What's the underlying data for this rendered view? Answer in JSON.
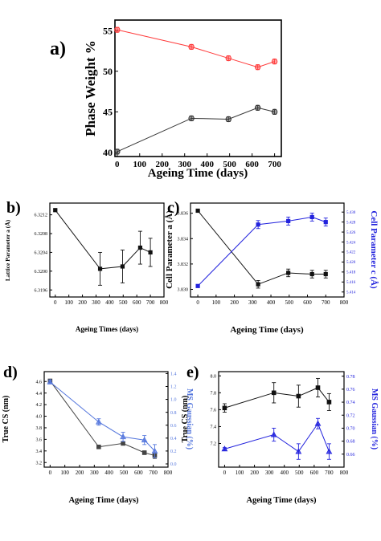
{
  "chart_data": [
    {
      "panel": "a)",
      "type": "scatter",
      "xlabel": "Ageing Time (days)",
      "ylabel": "Phase Weight %",
      "xlim": [
        -10,
        730
      ],
      "ylim": [
        39.5,
        56.3
      ],
      "xticks": [
        "0",
        "100",
        "200",
        "300",
        "400",
        "500",
        "600",
        "700"
      ],
      "yticks": [
        "40",
        "45",
        "50",
        "55"
      ],
      "series": [
        {
          "color": "#ff3b3b",
          "marker": "circle",
          "x": [
            0,
            330,
            495,
            625,
            700
          ],
          "y": [
            55.1,
            53.0,
            51.6,
            50.5,
            51.2
          ],
          "err": [
            0.3,
            0.3,
            0.3,
            0.3,
            0.3
          ]
        },
        {
          "color": "#333333",
          "marker": "circle",
          "x": [
            0,
            330,
            495,
            625,
            700
          ],
          "y": [
            40.1,
            44.2,
            44.1,
            45.5,
            45.0
          ],
          "err": [
            0.3,
            0.3,
            0.3,
            0.3,
            0.3
          ]
        }
      ]
    },
    {
      "panel": "b)",
      "type": "scatter",
      "xlabel": "Ageing Times (days)",
      "ylabel": "Lattice Parameter a (Å)",
      "xlim": [
        -40,
        800
      ],
      "ylim": [
        6.31945,
        6.32145
      ],
      "xticks": [
        "0",
        "100",
        "200",
        "300",
        "400",
        "500",
        "600",
        "700",
        "800"
      ],
      "yticks": [
        "6.3196",
        "6.3200",
        "6.3204",
        "6.3208",
        "6.3212"
      ],
      "series": [
        {
          "color": "#111111",
          "marker": "square",
          "x": [
            0,
            330,
            495,
            625,
            700
          ],
          "y": [
            6.3213,
            6.32005,
            6.3201,
            6.3205,
            6.3204
          ],
          "err": [
            2e-05,
            0.00035,
            0.00035,
            0.00035,
            0.0003
          ]
        }
      ]
    },
    {
      "panel": "c)",
      "type": "scatter",
      "xlabel": "Ageing Time (days)",
      "ylabel": "Cell Parameter a (Å)",
      "ylabel_right": "Cell Parameter c (Å)",
      "xlim": [
        -40,
        800
      ],
      "ylim": [
        3.8294,
        3.8368
      ],
      "ylim_right": [
        5.413,
        5.4318
      ],
      "xticks": [
        "0",
        "100",
        "200",
        "300",
        "400",
        "500",
        "600",
        "700",
        "800"
      ],
      "yticks": [
        "3.830",
        "3.832",
        "3.834",
        "3.836"
      ],
      "yticks_right": [
        "5.414",
        "5.416",
        "5.418",
        "5.420",
        "5.422",
        "5.424",
        "5.426",
        "5.428",
        "5.430"
      ],
      "series": [
        {
          "axis": "left",
          "color": "#111111",
          "marker": "square",
          "x": [
            0,
            330,
            495,
            625,
            700
          ],
          "y": [
            3.8362,
            3.8304,
            3.8313,
            3.8312,
            3.8312
          ],
          "err": [
            5e-05,
            0.0003,
            0.0003,
            0.0003,
            0.0003
          ]
        },
        {
          "axis": "right",
          "color": "#2222dd",
          "marker": "square",
          "x": [
            0,
            330,
            495,
            625,
            700
          ],
          "y": [
            5.4152,
            5.4275,
            5.4282,
            5.429,
            5.428
          ],
          "err": [
            0.0002,
            0.0008,
            0.0008,
            0.0008,
            0.0008
          ]
        }
      ]
    },
    {
      "panel": "d)",
      "type": "scatter",
      "xlabel": "Ageing Time (days)",
      "ylabel": "True CS (nm)",
      "ylabel_right": "MS Gaussian (%)",
      "xlim": [
        -40,
        800
      ],
      "ylim": [
        3.12,
        4.77
      ],
      "ylim_right": [
        -0.05,
        1.43
      ],
      "xticks": [
        "0",
        "100",
        "200",
        "300",
        "400",
        "500",
        "600",
        "700",
        "800"
      ],
      "yticks": [
        "3.2",
        "3.4",
        "3.6",
        "3.8",
        "4.0",
        "4.2",
        "4.4",
        "4.6"
      ],
      "yticks_right": [
        "0.0",
        "0.2",
        "0.4",
        "0.6",
        "0.8",
        "1.0",
        "1.2",
        "1.4"
      ],
      "series": [
        {
          "axis": "left",
          "color": "#444444",
          "marker": "square",
          "x": [
            0,
            330,
            495,
            640,
            710
          ],
          "y": [
            4.61,
            3.47,
            3.53,
            3.37,
            3.32
          ],
          "err": [
            0.03,
            0.02,
            0.02,
            0.03,
            0.05
          ]
        },
        {
          "axis": "right",
          "color": "#5577dd",
          "marker": "triangle",
          "x": [
            0,
            330,
            495,
            640,
            710
          ],
          "y": [
            1.27,
            0.65,
            0.42,
            0.37,
            0.2
          ],
          "err": [
            0.03,
            0.05,
            0.07,
            0.07,
            0.1
          ]
        }
      ]
    },
    {
      "panel": "e)",
      "type": "scatter",
      "xlabel": "Ageing Time (days)",
      "ylabel": "True CS (nm)",
      "ylabel_right": "MS Gaussian (%)",
      "xlim": [
        -40,
        800
      ],
      "ylim": [
        6.92,
        8.05
      ],
      "ylim_right": [
        0.64,
        0.787
      ],
      "xticks": [
        "0",
        "100",
        "200",
        "300",
        "400",
        "500",
        "600",
        "700",
        "800"
      ],
      "yticks": [
        "7.2",
        "7.4",
        "7.6",
        "7.8",
        "8.0"
      ],
      "yticks_right": [
        "0.66",
        "0.68",
        "0.70",
        "0.72",
        "0.74",
        "0.76",
        "0.78"
      ],
      "series": [
        {
          "axis": "left",
          "color": "#111111",
          "marker": "square",
          "x": [
            0,
            330,
            495,
            625,
            700
          ],
          "y": [
            7.62,
            7.8,
            7.76,
            7.86,
            7.69
          ],
          "err": [
            0.05,
            0.12,
            0.13,
            0.11,
            0.1
          ]
        },
        {
          "axis": "right",
          "color": "#2222dd",
          "marker": "triangle",
          "x": [
            0,
            330,
            495,
            625,
            700
          ],
          "y": [
            0.668,
            0.69,
            0.664,
            0.707,
            0.664
          ],
          "err": [
            0.002,
            0.01,
            0.012,
            0.008,
            0.012
          ]
        }
      ]
    }
  ]
}
